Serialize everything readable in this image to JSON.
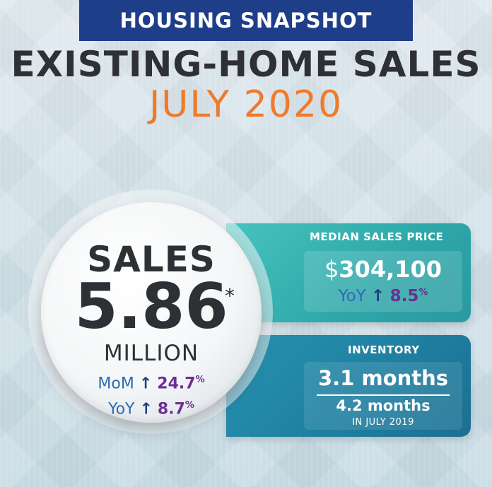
{
  "header": {
    "banner": "HOUSING SNAPSHOT",
    "title": "EXISTING-HOME SALES",
    "subtitle": "JULY 2020"
  },
  "sales": {
    "label": "SALES",
    "value": "5.86",
    "asterisk": "*",
    "unit": "MILLION",
    "mom_label": "MoM",
    "mom_arrow": "↑",
    "mom_value": "24.7",
    "mom_unit": "%",
    "yoy_label": "YoY",
    "yoy_arrow": "↑",
    "yoy_value": "8.7",
    "yoy_unit": "%"
  },
  "median_price": {
    "label": "MEDIAN SALES PRICE",
    "currency": "$",
    "value": "304,100",
    "yoy_label": "YoY",
    "yoy_arrow": "↑",
    "yoy_value": "8.5",
    "yoy_unit": "%"
  },
  "inventory": {
    "label": "INVENTORY",
    "current": "3.1 months",
    "previous": "4.2 months",
    "previous_note": "IN JULY 2019"
  },
  "colors": {
    "banner": "#1f3e8a",
    "title": "#2d3034",
    "subtitle": "#f07a2a",
    "panel_teal": "#2ea7a9",
    "panel_blue": "#1f7ea0",
    "stat_label": "#2d6bb4",
    "stat_value": "#6c2f93"
  }
}
